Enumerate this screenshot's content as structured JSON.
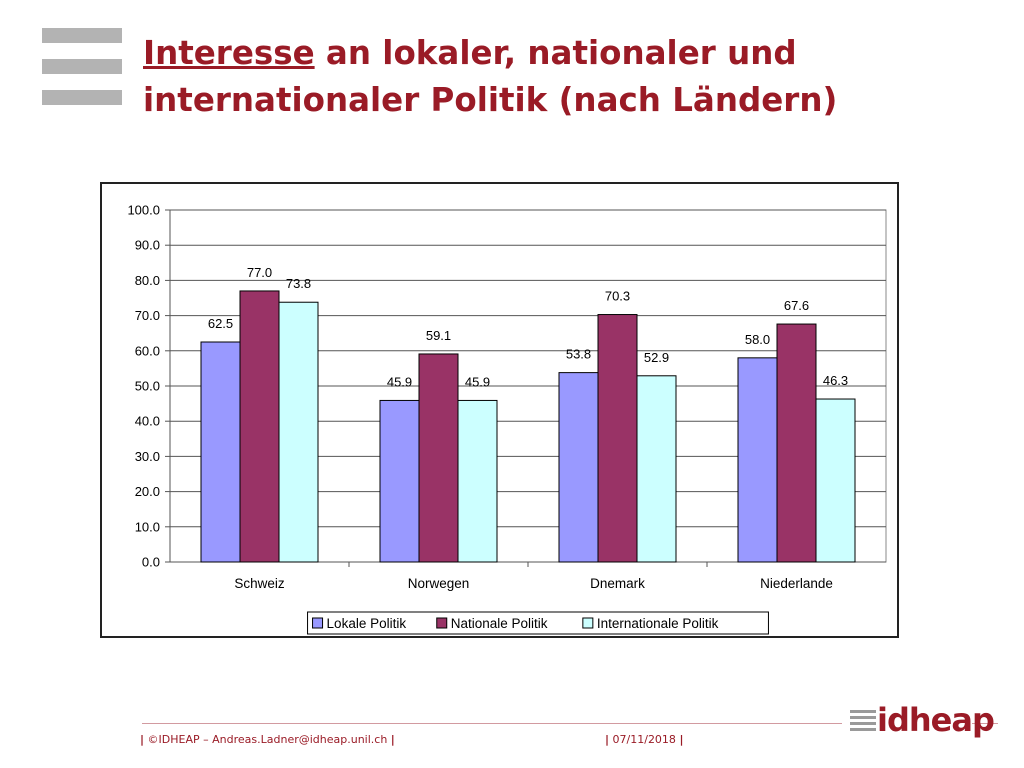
{
  "slide": {
    "title_highlight": "Interesse",
    "title_rest": " an lokaler, nationaler und internationaler Politik (nach Ländern)"
  },
  "footer": {
    "left_text": "©IDHEAP – Andreas.Ladner@idheap.unil.ch",
    "date": "07/11/2018",
    "logo_text": "idheap"
  },
  "colors": {
    "title": "#9a1b26",
    "series": [
      "#9999ff",
      "#993366",
      "#ccffff"
    ]
  },
  "chart_data": {
    "type": "bar",
    "categories": [
      "Schweiz",
      "Norwegen",
      "Dnemark",
      "Niederlande"
    ],
    "series": [
      {
        "name": "Lokale Politik",
        "values": [
          62.5,
          45.9,
          53.8,
          58.0
        ]
      },
      {
        "name": "Nationale Politik",
        "values": [
          77.0,
          59.1,
          70.3,
          67.6
        ]
      },
      {
        "name": "Internationale Politik",
        "values": [
          73.8,
          45.9,
          52.9,
          46.3
        ]
      }
    ],
    "ylim": [
      0,
      100
    ],
    "yticks": [
      "0.0",
      "10.0",
      "20.0",
      "30.0",
      "40.0",
      "50.0",
      "60.0",
      "70.0",
      "80.0",
      "90.0",
      "100.0"
    ],
    "grid": true,
    "legend_position": "bottom",
    "title": "",
    "xlabel": "",
    "ylabel": ""
  }
}
